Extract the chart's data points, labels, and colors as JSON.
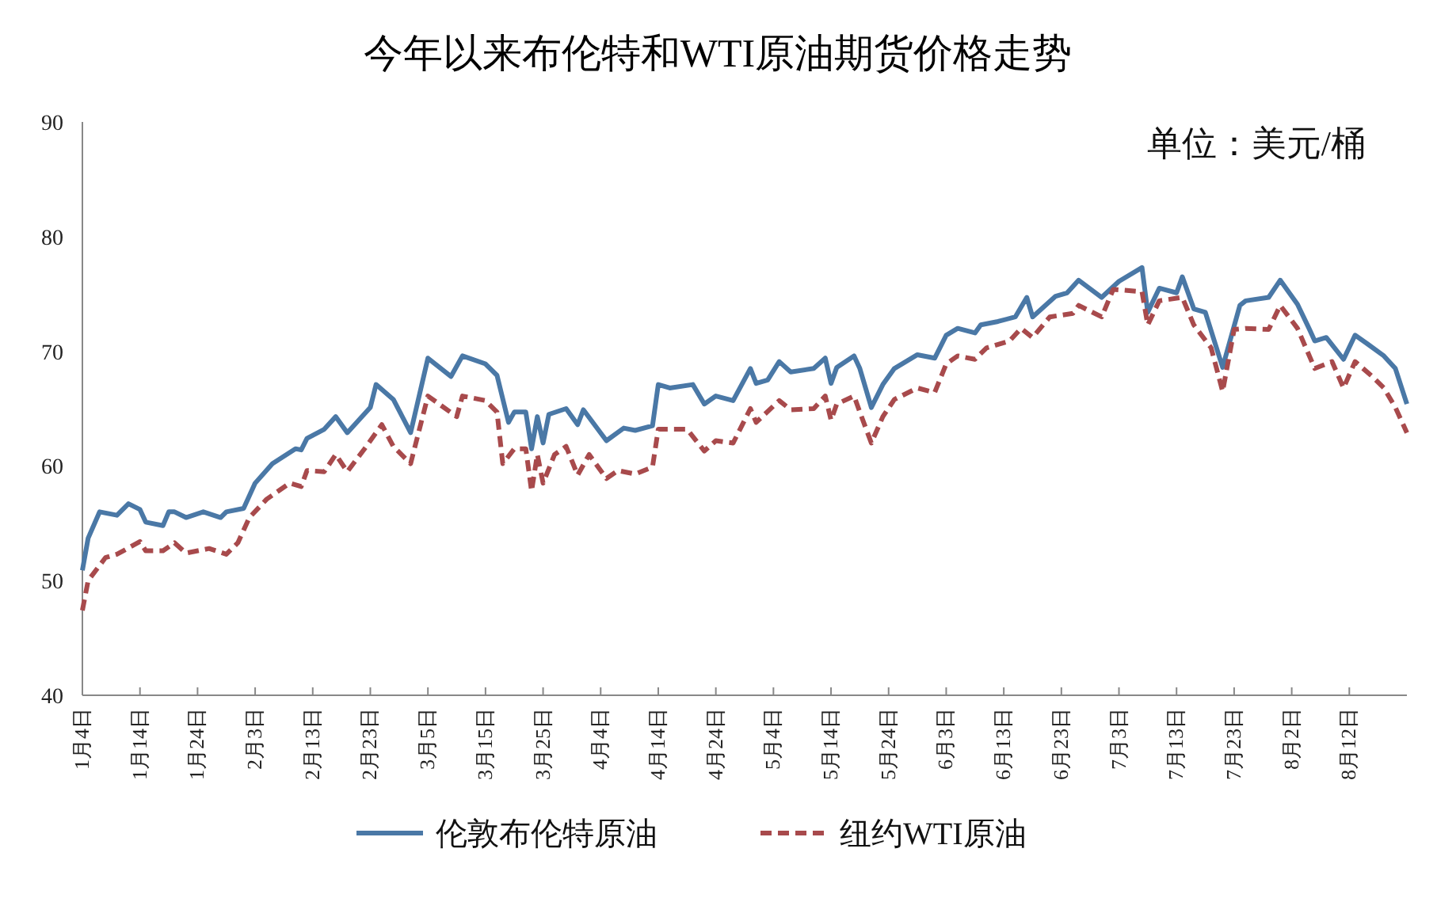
{
  "chart_data": {
    "type": "line",
    "title": "今年以来布伦特和WTI原油期货价格走势",
    "annotations": [
      "单位：美元/桶"
    ],
    "xlim": [
      "--01-04",
      "--08-22"
    ],
    "xticks": [
      {
        "value": "--01-04",
        "label": "1月4日"
      },
      {
        "value": "--01-14",
        "label": "1月14日"
      },
      {
        "value": "--01-24",
        "label": "1月24日"
      },
      {
        "value": "--02-03",
        "label": "2月3日"
      },
      {
        "value": "--02-13",
        "label": "2月13日"
      },
      {
        "value": "--02-23",
        "label": "2月23日"
      },
      {
        "value": "--03-05",
        "label": "3月5日"
      },
      {
        "value": "--03-15",
        "label": "3月15日"
      },
      {
        "value": "--03-25",
        "label": "3月25日"
      },
      {
        "value": "--04-04",
        "label": "4月4日"
      },
      {
        "value": "--04-14",
        "label": "4月14日"
      },
      {
        "value": "--04-24",
        "label": "4月24日"
      },
      {
        "value": "--05-04",
        "label": "5月4日"
      },
      {
        "value": "--05-14",
        "label": "5月14日"
      },
      {
        "value": "--05-24",
        "label": "5月24日"
      },
      {
        "value": "--06-03",
        "label": "6月3日"
      },
      {
        "value": "--06-13",
        "label": "6月13日"
      },
      {
        "value": "--06-23",
        "label": "6月23日"
      },
      {
        "value": "--07-03",
        "label": "7月3日"
      },
      {
        "value": "--07-13",
        "label": "7月13日"
      },
      {
        "value": "--07-23",
        "label": "7月23日"
      },
      {
        "value": "--08-02",
        "label": "8月2日"
      },
      {
        "value": "--08-12",
        "label": "8月12日"
      }
    ],
    "ylim": [
      40,
      90
    ],
    "yticks": [
      40,
      50,
      60,
      70,
      80,
      90
    ],
    "grid": false,
    "legend": "bottom",
    "marker": "none",
    "series": [
      {
        "name": "伦敦布伦特原油",
        "color": "#4a78a6",
        "line_style": "solid",
        "x": [
          "--01-04",
          "--01-05",
          "--01-07",
          "--01-10",
          "--01-12",
          "--01-14",
          "--01-15",
          "--01-18",
          "--01-19",
          "--01-20",
          "--01-22",
          "--01-25",
          "--01-28",
          "--01-29",
          "--02-01",
          "--02-03",
          "--02-06",
          "--02-10",
          "--02-11",
          "--02-12",
          "--02-15",
          "--02-17",
          "--02-19",
          "--02-23",
          "--02-24",
          "--02-27",
          "--03-02",
          "--03-05",
          "--03-09",
          "--03-11",
          "--03-15",
          "--03-17",
          "--03-19",
          "--03-20",
          "--03-22",
          "--03-23",
          "--03-24",
          "--03-25",
          "--03-26",
          "--03-29",
          "--03-31",
          "--04-01",
          "--04-05",
          "--04-08",
          "--04-10",
          "--04-13",
          "--04-14",
          "--04-16",
          "--04-20",
          "--04-22",
          "--04-24",
          "--04-27",
          "--04-30",
          "--05-01",
          "--05-03",
          "--05-05",
          "--05-07",
          "--05-11",
          "--05-13",
          "--05-14",
          "--05-15",
          "--05-18",
          "--05-19",
          "--05-21",
          "--05-23",
          "--05-25",
          "--05-29",
          "--06-01",
          "--06-03",
          "--06-05",
          "--06-08",
          "--06-09",
          "--06-12",
          "--06-15",
          "--06-17",
          "--06-18",
          "--06-22",
          "--06-24",
          "--06-26",
          "--06-30",
          "--07-03",
          "--07-07",
          "--07-08",
          "--07-10",
          "--07-13",
          "--07-14",
          "--07-16",
          "--07-18",
          "--07-21",
          "--07-24",
          "--07-25",
          "--07-29",
          "--07-31",
          "--08-03",
          "--08-05",
          "--08-06",
          "--08-08",
          "--08-11",
          "--08-13",
          "--08-15",
          "--08-18",
          "--08-20",
          "--08-22"
        ],
        "values": [
          50.9,
          53.7,
          56.0,
          55.7,
          56.7,
          56.2,
          55.1,
          54.8,
          56.0,
          56.0,
          55.5,
          56.0,
          55.5,
          56.0,
          56.3,
          58.5,
          60.2,
          61.5,
          61.4,
          62.4,
          63.2,
          64.3,
          62.9,
          65.1,
          67.1,
          65.8,
          62.9,
          69.4,
          67.8,
          69.6,
          68.9,
          67.9,
          63.8,
          64.7,
          64.7,
          61.5,
          64.3,
          62.0,
          64.5,
          65.0,
          63.6,
          64.9,
          62.2,
          63.3,
          63.1,
          63.5,
          67.1,
          66.8,
          67.1,
          65.4,
          66.1,
          65.7,
          68.5,
          67.2,
          67.5,
          69.1,
          68.2,
          68.5,
          69.4,
          67.2,
          68.6,
          69.6,
          68.5,
          65.1,
          67.1,
          68.5,
          69.7,
          69.4,
          71.4,
          72.0,
          71.6,
          72.3,
          72.6,
          73.0,
          74.7,
          73.0,
          74.8,
          75.1,
          76.2,
          74.7,
          76.1,
          77.3,
          73.4,
          75.5,
          75.1,
          76.5,
          73.7,
          73.4,
          68.6,
          74.0,
          74.4,
          74.7,
          76.2,
          74.1,
          72.0,
          70.9,
          71.2,
          69.3,
          71.4,
          70.7,
          69.6,
          68.5,
          65.4
        ]
      },
      {
        "name": "纽约WTI原油",
        "color": "#a84a4c",
        "line_style": "dashed",
        "x": [
          "--01-04",
          "--01-05",
          "--01-08",
          "--01-10",
          "--01-14",
          "--01-15",
          "--01-18",
          "--01-20",
          "--01-22",
          "--01-26",
          "--01-29",
          "--01-31",
          "--02-02",
          "--02-05",
          "--02-09",
          "--02-11",
          "--02-12",
          "--02-15",
          "--02-17",
          "--02-19",
          "--02-22",
          "--02-25",
          "--02-27",
          "--03-02",
          "--03-05",
          "--03-10",
          "--03-11",
          "--03-15",
          "--03-17",
          "--03-18",
          "--03-20",
          "--03-22",
          "--03-23",
          "--03-24",
          "--03-25",
          "--03-27",
          "--03-29",
          "--03-31",
          "--04-02",
          "--04-05",
          "--04-07",
          "--04-10",
          "--04-13",
          "--04-14",
          "--04-19",
          "--04-22",
          "--04-24",
          "--04-27",
          "--04-30",
          "--05-01",
          "--05-05",
          "--05-07",
          "--05-11",
          "--05-13",
          "--05-14",
          "--05-15",
          "--05-18",
          "--05-19",
          "--05-21",
          "--05-23",
          "--05-25",
          "--05-29",
          "--06-01",
          "--06-03",
          "--06-05",
          "--06-08",
          "--06-10",
          "--06-14",
          "--06-16",
          "--06-18",
          "--06-21",
          "--06-25",
          "--06-26",
          "--06-30",
          "--07-02",
          "--07-07",
          "--07-08",
          "--07-10",
          "--07-14",
          "--07-16",
          "--07-19",
          "--07-21",
          "--07-23",
          "--07-25",
          "--07-29",
          "--07-31",
          "--08-03",
          "--08-06",
          "--08-09",
          "--08-11",
          "--08-13",
          "--08-16",
          "--08-18",
          "--08-20",
          "--08-22"
        ],
        "values": [
          47.4,
          50.0,
          52.0,
          52.3,
          53.4,
          52.6,
          52.6,
          53.3,
          52.4,
          52.8,
          52.3,
          53.3,
          55.5,
          57.1,
          58.5,
          58.2,
          59.6,
          59.5,
          61.0,
          59.5,
          61.5,
          63.6,
          61.7,
          60.2,
          66.1,
          64.3,
          66.1,
          65.7,
          64.7,
          60.2,
          61.5,
          61.5,
          57.8,
          61.0,
          58.5,
          61.0,
          61.7,
          59.2,
          61.0,
          58.9,
          59.6,
          59.3,
          59.9,
          63.2,
          63.2,
          61.3,
          62.2,
          62.0,
          65.0,
          63.8,
          65.7,
          64.9,
          65.0,
          66.1,
          64.0,
          65.4,
          66.1,
          64.7,
          62.0,
          64.3,
          65.8,
          66.8,
          66.4,
          68.9,
          69.6,
          69.3,
          70.3,
          70.9,
          72.0,
          71.2,
          73.0,
          73.3,
          74.0,
          73.0,
          75.4,
          75.2,
          72.3,
          74.4,
          74.7,
          72.3,
          70.3,
          66.5,
          71.9,
          72.0,
          71.9,
          74.0,
          72.0,
          68.5,
          69.1,
          66.8,
          69.1,
          67.8,
          66.8,
          65.1,
          62.9
        ]
      }
    ]
  }
}
